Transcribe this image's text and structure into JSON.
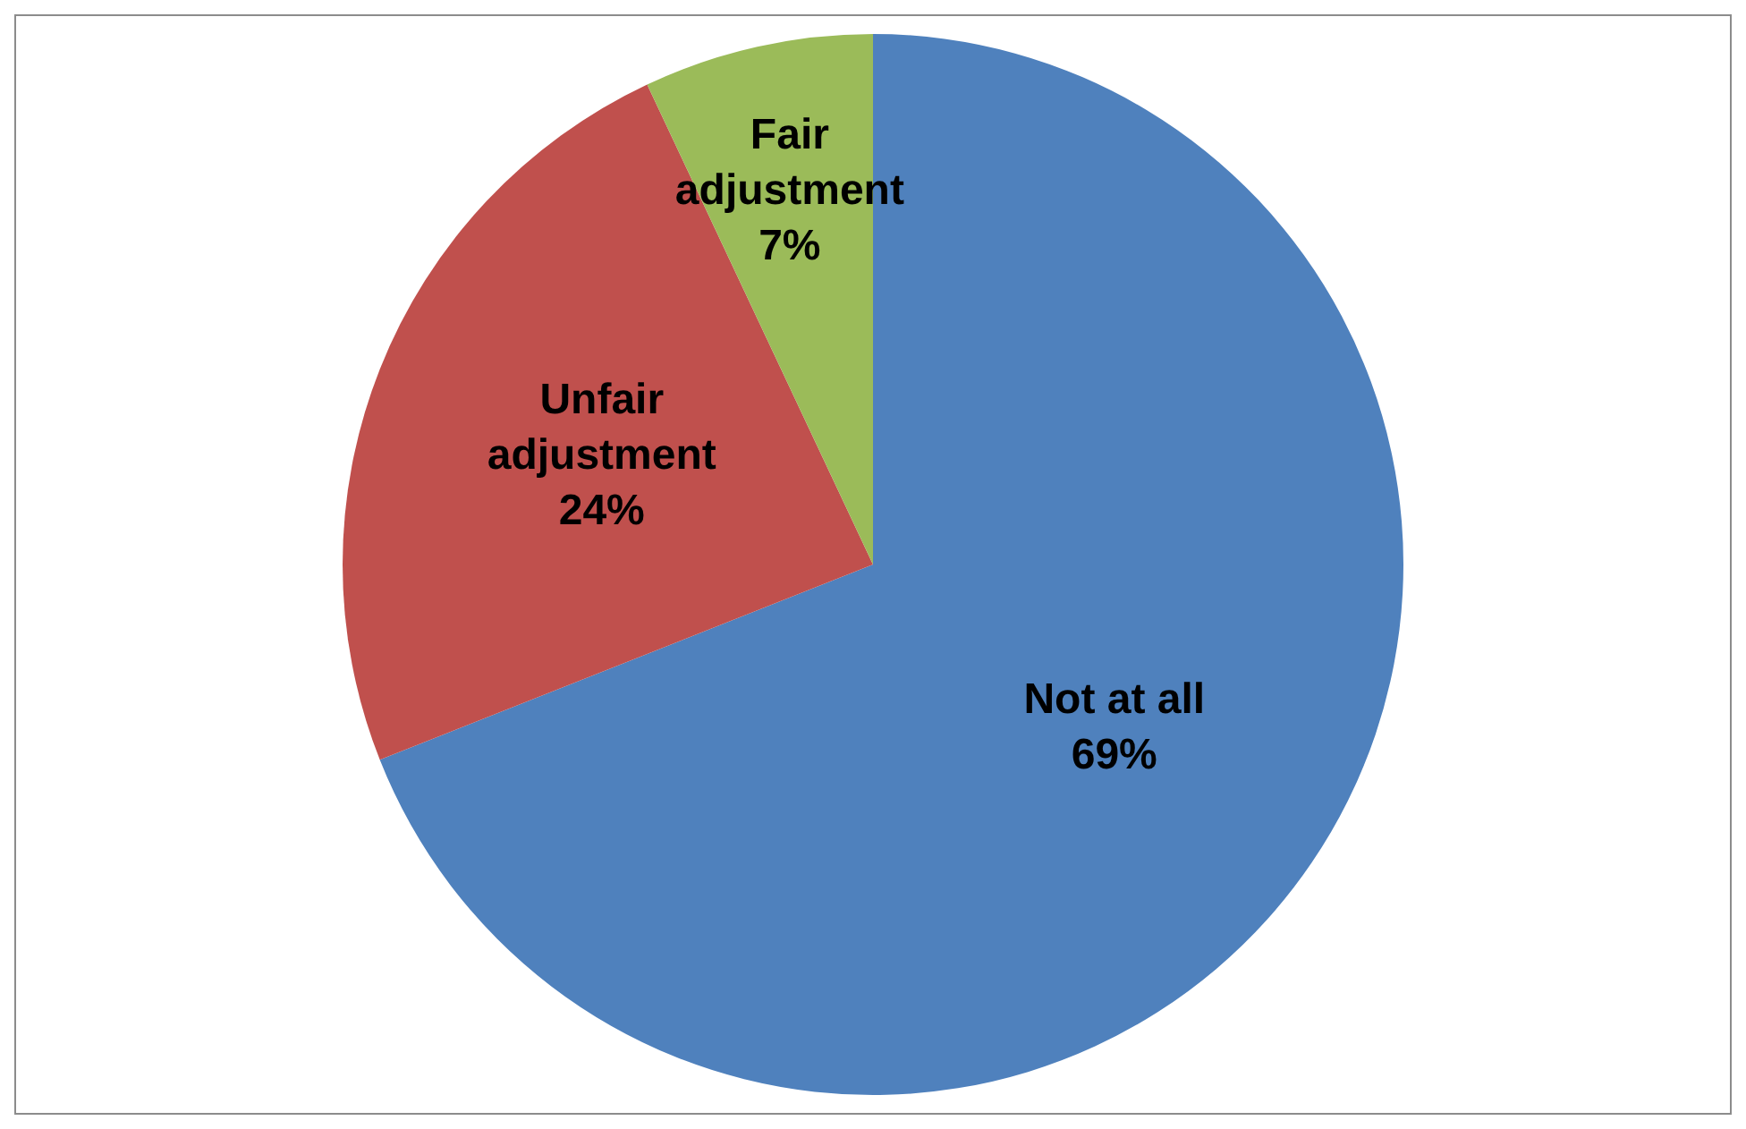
{
  "chart_data": {
    "type": "pie",
    "categories": [
      "Not at all",
      "Unfair adjustment",
      "Fair adjustment"
    ],
    "values": [
      69,
      24,
      7
    ],
    "colors": [
      "#4f81bd",
      "#c0504d",
      "#9bbb59"
    ],
    "value_labels": [
      "69%",
      "24%",
      "7%"
    ],
    "legend": false
  }
}
